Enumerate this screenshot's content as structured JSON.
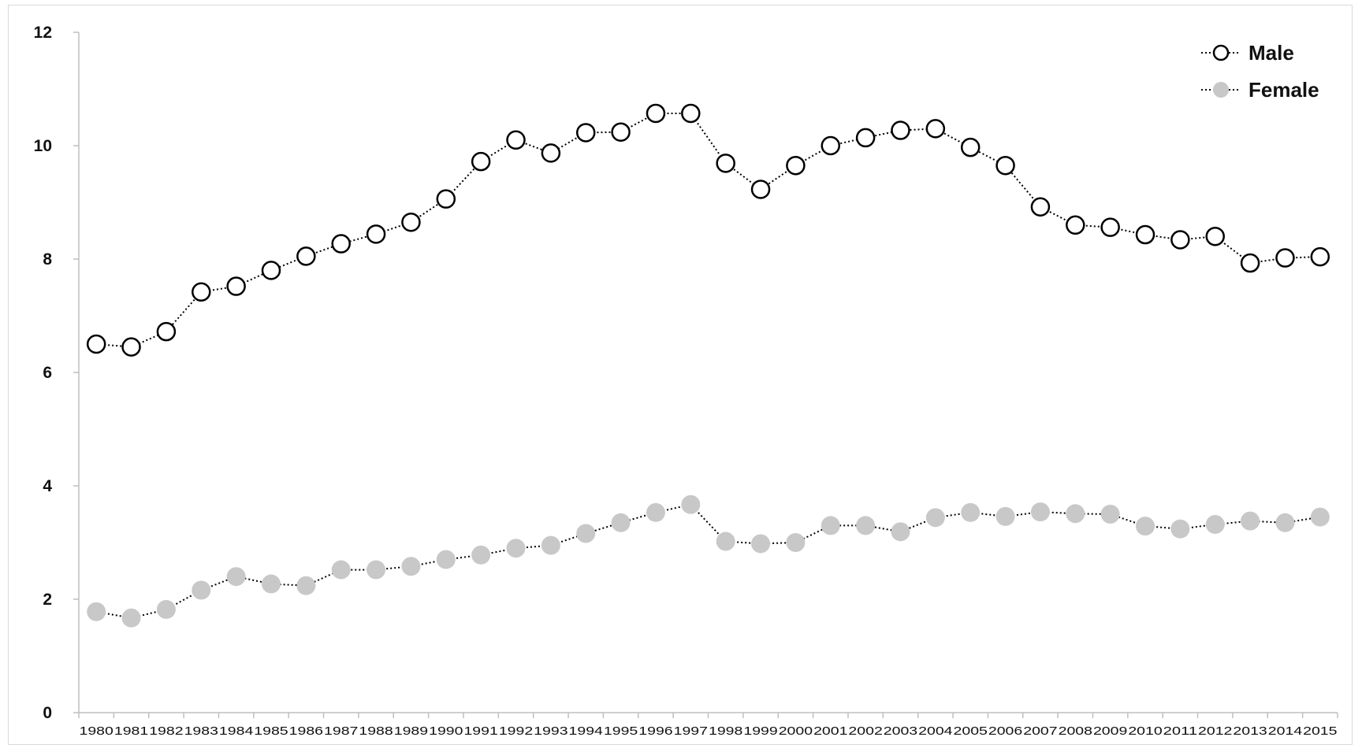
{
  "chart_data": {
    "type": "line",
    "title": "",
    "xlabel": "",
    "ylabel": "",
    "ylim": [
      0,
      12
    ],
    "yticks": [
      "0",
      "2",
      "4",
      "6",
      "8",
      "10",
      "12"
    ],
    "categories": [
      "1980",
      "1981",
      "1982",
      "1983",
      "1984",
      "1985",
      "1986",
      "1987",
      "1988",
      "1989",
      "1990",
      "1991",
      "1992",
      "1993",
      "1994",
      "1995",
      "1996",
      "1997",
      "1998",
      "1999",
      "2000",
      "2001",
      "2002",
      "2003",
      "2004",
      "2005",
      "2006",
      "2007",
      "2008",
      "2009",
      "2010",
      "2011",
      "2012",
      "2013",
      "2014",
      "2015"
    ],
    "grid": false,
    "legend_position": "top-right",
    "series": [
      {
        "name": "Male",
        "marker": "hollow-circle",
        "color": "#000000",
        "values": [
          6.5,
          6.45,
          6.72,
          7.42,
          7.52,
          7.8,
          8.05,
          8.27,
          8.44,
          8.65,
          9.06,
          9.72,
          10.1,
          9.87,
          10.23,
          10.24,
          10.57,
          10.57,
          9.69,
          9.23,
          9.65,
          10.0,
          10.14,
          10.27,
          10.3,
          9.97,
          9.65,
          8.92,
          8.6,
          8.56,
          8.43,
          8.34,
          8.4,
          7.93,
          8.02,
          8.04
        ]
      },
      {
        "name": "Female",
        "marker": "filled-circle",
        "color": "#c8c8c8",
        "values": [
          1.78,
          1.67,
          1.82,
          2.16,
          2.4,
          2.27,
          2.24,
          2.52,
          2.52,
          2.58,
          2.7,
          2.78,
          2.9,
          2.95,
          3.16,
          3.35,
          3.53,
          3.67,
          3.02,
          2.98,
          3.0,
          3.3,
          3.3,
          3.19,
          3.44,
          3.53,
          3.46,
          3.54,
          3.51,
          3.5,
          3.29,
          3.24,
          3.32,
          3.38,
          3.35,
          3.45
        ]
      }
    ]
  }
}
